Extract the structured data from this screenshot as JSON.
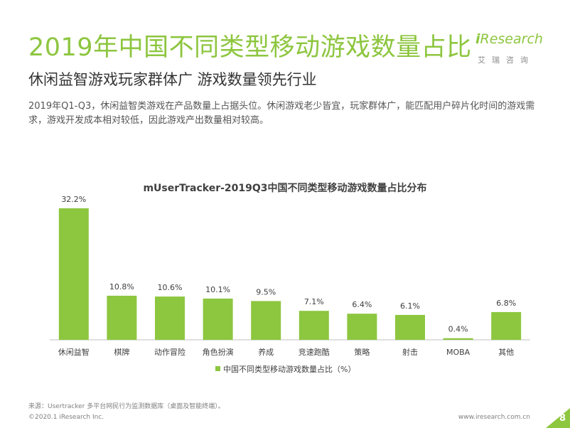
{
  "header": {
    "title": "2019年中国不同类型移动游戏数量占比",
    "subtitle": "休闲益智游戏玩家群体广 游戏数量领先行业",
    "description": "2019年Q1-Q3，休闲益智类游戏在产品数量上占据头位。休闲游戏老少皆宜，玩家群体广，能匹配用户碎片化时间的游戏需求，游戏开发成本相对较低，因此游戏产出数量相对较高。"
  },
  "logo": {
    "brand_i": "i",
    "brand_rest": "Research",
    "tagline": "艾瑞咨询"
  },
  "chart_data": {
    "type": "bar",
    "title": "mUserTracker-2019Q3中国不同类型移动游戏数量占比分布",
    "categories": [
      "休闲益智",
      "棋牌",
      "动作冒险",
      "角色扮演",
      "养成",
      "竞速跑酷",
      "策略",
      "射击",
      "MOBA",
      "其他"
    ],
    "series": [
      {
        "name": "中国不同类型移动游戏数量占比（%）",
        "values": [
          32.2,
          10.8,
          10.6,
          10.1,
          9.5,
          7.1,
          6.4,
          6.1,
          0.4,
          6.8
        ]
      }
    ],
    "value_labels": [
      "32.2%",
      "10.8%",
      "10.6%",
      "10.1%",
      "9.5%",
      "7.1%",
      "6.4%",
      "6.1%",
      "0.4%",
      "6.8%"
    ],
    "ylim": [
      0,
      35
    ],
    "legend_position": "bottom",
    "grid": false,
    "bar_color": "#8dc63f"
  },
  "footer": {
    "source": "来源：Usertracker 多平台网民行为监测数据库（桌面及智能终端）。",
    "copyright": "©2020.1 iResearch Inc.",
    "website": "www.iresearch.com.cn",
    "page_number": "8"
  },
  "colors": {
    "accent": "#8dc63f",
    "text": "#404040"
  }
}
